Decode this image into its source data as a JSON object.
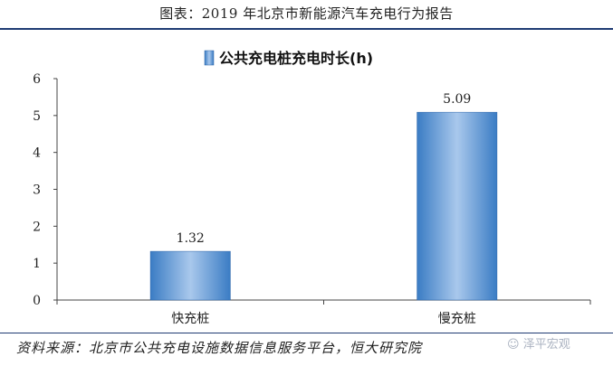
{
  "header": {
    "title": "图表：2019 年北京市新能源汽车充电行为报告"
  },
  "footer": {
    "source": "资料来源：北京市公共充电设施数据信息服务平台，恒大研究院",
    "watermark": "泽平宏观"
  },
  "chart_data": {
    "type": "bar",
    "title": "",
    "categories": [
      "快充桩",
      "慢充桩"
    ],
    "series": [
      {
        "name": "公共充电桩充电时长(h)",
        "values": [
          1.32,
          5.09
        ]
      }
    ],
    "data_labels": [
      "1.32",
      "5.09"
    ],
    "y_ticks": [
      "0",
      "1",
      "2",
      "3",
      "4",
      "5",
      "6"
    ],
    "xlabel": "",
    "ylabel": "",
    "ylim": [
      0,
      6
    ],
    "grid": false,
    "legend_position": "top-center",
    "bar_color": "#3a7cc4",
    "bar_color_light": "#a9c8ec"
  }
}
